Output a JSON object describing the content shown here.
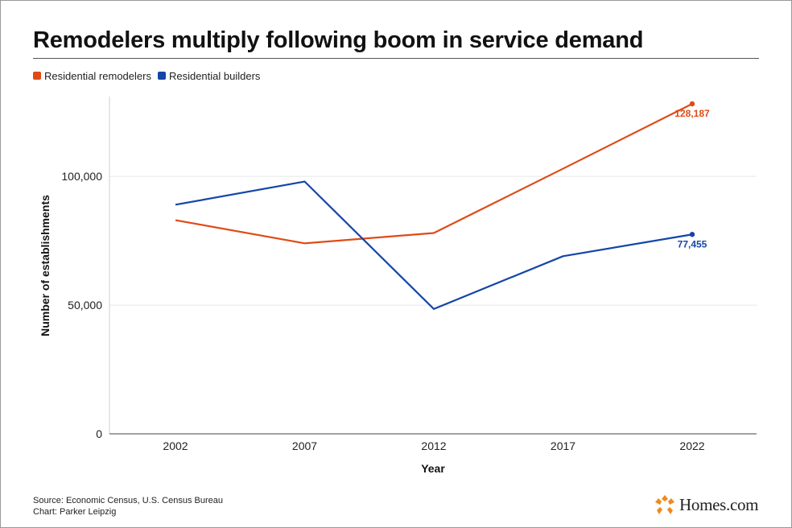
{
  "title": "Remodelers multiply following boom in service demand",
  "legend": [
    {
      "label": "Residential remodelers",
      "color": "#e04a17"
    },
    {
      "label": "Residential builders",
      "color": "#1446a8"
    }
  ],
  "chart_data": {
    "type": "line",
    "x": [
      "2002",
      "2007",
      "2012",
      "2017",
      "2022"
    ],
    "series": [
      {
        "name": "Residential remodelers",
        "color": "#e04a17",
        "values": [
          83000,
          74000,
          78000,
          103000,
          128187
        ],
        "end_label": "128,187"
      },
      {
        "name": "Residential builders",
        "color": "#1446a8",
        "values": [
          89000,
          98000,
          48500,
          69000,
          77455
        ],
        "end_label": "77,455"
      }
    ],
    "xlabel": "Year",
    "ylabel": "Number of establishments",
    "ylim": [
      0,
      131000
    ],
    "yticks": [
      0,
      50000,
      100000
    ],
    "ytick_labels": [
      "0",
      "50,000",
      "100,000"
    ],
    "grid": true,
    "legend_position": "top-left"
  },
  "footer": {
    "source": "Source: Economic Census, U.S. Census Bureau",
    "credit": "Chart: Parker Leipzig"
  },
  "logo": {
    "text": "Homes.com",
    "icon": "homes-com-logo-icon",
    "color": "#f08a1c"
  }
}
